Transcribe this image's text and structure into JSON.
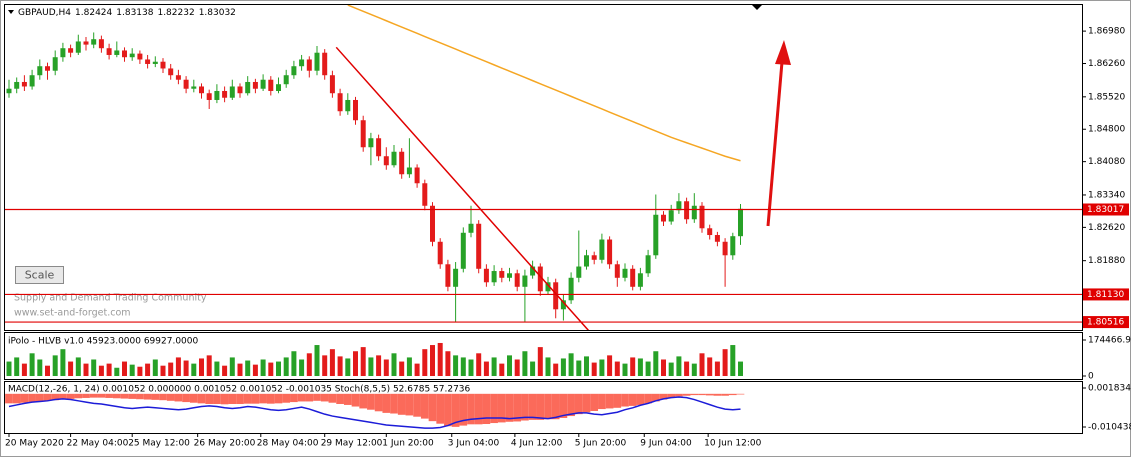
{
  "chart_data": {
    "type": "candlestick",
    "symbol": "GBPAUD,H4",
    "up_color": "#27a127",
    "down_color": "#e31b1b",
    "ylim": [
      1.8034,
      1.8756
    ],
    "yticks": [
      {
        "value": 1.8698,
        "label": "1.86980"
      },
      {
        "value": 1.8626,
        "label": "1.86260"
      },
      {
        "value": 1.8552,
        "label": "1.85520"
      },
      {
        "value": 1.848,
        "label": "1.84800"
      },
      {
        "value": 1.8408,
        "label": "1.84080"
      },
      {
        "value": 1.8334,
        "label": "1.83340"
      },
      {
        "value": 1.8262,
        "label": "1.82620"
      },
      {
        "value": 1.8188,
        "label": "1.81880"
      }
    ],
    "xticks": [
      {
        "value": 0,
        "label": "20 May 2020"
      },
      {
        "value": 8,
        "label": "22 May 04:00"
      },
      {
        "value": 16,
        "label": "25 May 12:00"
      },
      {
        "value": 24.5,
        "label": "26 May 20:00"
      },
      {
        "value": 32.7,
        "label": "28 May 04:00"
      },
      {
        "value": 41,
        "label": "29 May 12:00"
      },
      {
        "value": 49,
        "label": "1 Jun 20:00"
      },
      {
        "value": 57.5,
        "label": "3 Jun 04:00"
      },
      {
        "value": 65.7,
        "label": "4 Jun 12:00"
      },
      {
        "value": 74,
        "label": "5 Jun 20:00"
      },
      {
        "value": 82.5,
        "label": "9 Jun 04:00"
      },
      {
        "value": 90.8,
        "label": "10 Jun 12:00"
      }
    ],
    "candles": [
      [
        1.856,
        1.859,
        1.855,
        1.857
      ],
      [
        1.857,
        1.8595,
        1.856,
        1.8585
      ],
      [
        1.8585,
        1.86,
        1.8565,
        1.8575
      ],
      [
        1.8575,
        1.8612,
        1.8568,
        1.86
      ],
      [
        1.86,
        1.8635,
        1.859,
        1.862
      ],
      [
        1.862,
        1.8628,
        1.859,
        1.861
      ],
      [
        1.861,
        1.8655,
        1.86,
        1.864
      ],
      [
        1.864,
        1.8672,
        1.863,
        1.866
      ],
      [
        1.866,
        1.8668,
        1.864,
        1.865
      ],
      [
        1.865,
        1.869,
        1.8645,
        1.8675
      ],
      [
        1.8675,
        1.8685,
        1.8655,
        1.8668
      ],
      [
        1.8668,
        1.8695,
        1.866,
        1.868
      ],
      [
        1.868,
        1.8688,
        1.865,
        1.866
      ],
      [
        1.866,
        1.867,
        1.8635,
        1.8645
      ],
      [
        1.8645,
        1.8675,
        1.864,
        1.8655
      ],
      [
        1.8655,
        1.8662,
        1.863,
        1.864
      ],
      [
        1.864,
        1.866,
        1.8632,
        1.8648
      ],
      [
        1.8648,
        1.8655,
        1.8625,
        1.8635
      ],
      [
        1.8635,
        1.8645,
        1.8615,
        1.8625
      ],
      [
        1.8625,
        1.8642,
        1.8618,
        1.863
      ],
      [
        1.863,
        1.8638,
        1.8605,
        1.8615
      ],
      [
        1.8615,
        1.8625,
        1.859,
        1.86
      ],
      [
        1.86,
        1.8612,
        1.858,
        1.859
      ],
      [
        1.859,
        1.8598,
        1.856,
        1.857
      ],
      [
        1.857,
        1.859,
        1.8562,
        1.8575
      ],
      [
        1.8575,
        1.8582,
        1.8548,
        1.856
      ],
      [
        1.856,
        1.8568,
        1.8525,
        1.8545
      ],
      [
        1.8545,
        1.858,
        1.8538,
        1.8565
      ],
      [
        1.8565,
        1.8575,
        1.854,
        1.855
      ],
      [
        1.855,
        1.859,
        1.8545,
        1.8575
      ],
      [
        1.8575,
        1.8582,
        1.855,
        1.856
      ],
      [
        1.856,
        1.8598,
        1.8555,
        1.8585
      ],
      [
        1.8585,
        1.8592,
        1.856,
        1.857
      ],
      [
        1.857,
        1.8602,
        1.8565,
        1.859
      ],
      [
        1.859,
        1.8598,
        1.8555,
        1.8565
      ],
      [
        1.8565,
        1.8595,
        1.856,
        1.858
      ],
      [
        1.858,
        1.8612,
        1.8572,
        1.86
      ],
      [
        1.86,
        1.8632,
        1.8592,
        1.862
      ],
      [
        1.862,
        1.8645,
        1.861,
        1.8635
      ],
      [
        1.8635,
        1.8642,
        1.8595,
        1.861
      ],
      [
        1.861,
        1.8665,
        1.86,
        1.865
      ],
      [
        1.865,
        1.8658,
        1.859,
        1.86
      ],
      [
        1.86,
        1.861,
        1.855,
        1.856
      ],
      [
        1.856,
        1.857,
        1.851,
        1.852
      ],
      [
        1.852,
        1.856,
        1.8512,
        1.8545
      ],
      [
        1.8545,
        1.8552,
        1.849,
        1.85
      ],
      [
        1.85,
        1.851,
        1.843,
        1.844
      ],
      [
        1.844,
        1.8472,
        1.84,
        1.846
      ],
      [
        1.846,
        1.8468,
        1.841,
        1.842
      ],
      [
        1.842,
        1.844,
        1.839,
        1.84
      ],
      [
        1.84,
        1.8445,
        1.8395,
        1.843
      ],
      [
        1.843,
        1.8438,
        1.837,
        1.838
      ],
      [
        1.838,
        1.846,
        1.8372,
        1.8395
      ],
      [
        1.8395,
        1.8402,
        1.835,
        1.836
      ],
      [
        1.836,
        1.8368,
        1.83,
        1.831
      ],
      [
        1.831,
        1.8318,
        1.822,
        1.823
      ],
      [
        1.823,
        1.8238,
        1.817,
        1.818
      ],
      [
        1.818,
        1.819,
        1.812,
        1.813
      ],
      [
        1.813,
        1.8185,
        1.8052,
        1.817
      ],
      [
        1.817,
        1.8262,
        1.8162,
        1.825
      ],
      [
        1.825,
        1.831,
        1.824,
        1.827
      ],
      [
        1.827,
        1.8278,
        1.816,
        1.817
      ],
      [
        1.817,
        1.818,
        1.813,
        1.814
      ],
      [
        1.814,
        1.8178,
        1.8132,
        1.8165
      ],
      [
        1.8165,
        1.8172,
        1.814,
        1.815
      ],
      [
        1.815,
        1.8172,
        1.8142,
        1.816
      ],
      [
        1.816,
        1.8168,
        1.812,
        1.813
      ],
      [
        1.813,
        1.8168,
        1.8052,
        1.8155
      ],
      [
        1.8155,
        1.8188,
        1.8148,
        1.8175
      ],
      [
        1.8175,
        1.8182,
        1.811,
        1.812
      ],
      [
        1.812,
        1.8152,
        1.8112,
        1.814
      ],
      [
        1.814,
        1.8148,
        1.806,
        1.808
      ],
      [
        1.808,
        1.8112,
        1.8055,
        1.81
      ],
      [
        1.81,
        1.8162,
        1.8092,
        1.815
      ],
      [
        1.815,
        1.8255,
        1.814,
        1.8175
      ],
      [
        1.8175,
        1.8212,
        1.8168,
        1.82
      ],
      [
        1.82,
        1.8208,
        1.818,
        1.819
      ],
      [
        1.819,
        1.8248,
        1.8182,
        1.8235
      ],
      [
        1.8235,
        1.8242,
        1.817,
        1.818
      ],
      [
        1.818,
        1.8188,
        1.813,
        1.815
      ],
      [
        1.815,
        1.8182,
        1.8142,
        1.817
      ],
      [
        1.817,
        1.8178,
        1.8122,
        1.813
      ],
      [
        1.813,
        1.8172,
        1.8122,
        1.816
      ],
      [
        1.816,
        1.8212,
        1.8152,
        1.82
      ],
      [
        1.82,
        1.8335,
        1.8192,
        1.829
      ],
      [
        1.829,
        1.8298,
        1.8265,
        1.8275
      ],
      [
        1.8275,
        1.8312,
        1.8268,
        1.83
      ],
      [
        1.83,
        1.8338,
        1.8292,
        1.832
      ],
      [
        1.832,
        1.8328,
        1.827,
        1.828
      ],
      [
        1.828,
        1.8338,
        1.8272,
        1.831
      ],
      [
        1.831,
        1.8318,
        1.825,
        1.826
      ],
      [
        1.826,
        1.8268,
        1.8235,
        1.8245
      ],
      [
        1.8245,
        1.8252,
        1.822,
        1.823
      ],
      [
        1.823,
        1.8238,
        1.813,
        1.82
      ],
      [
        1.82,
        1.825,
        1.819,
        1.82424
      ],
      [
        1.82424,
        1.83138,
        1.82232,
        1.83032
      ]
    ],
    "ma": {
      "color": "#f5a623",
      "values": [
        null,
        null,
        null,
        null,
        null,
        null,
        null,
        null,
        null,
        null,
        null,
        null,
        null,
        null,
        null,
        null,
        null,
        null,
        null,
        null,
        null,
        null,
        null,
        null,
        null,
        null,
        null,
        null,
        null,
        null,
        null,
        null,
        null,
        null,
        null,
        null,
        null,
        null,
        null,
        null,
        null,
        null,
        null,
        null,
        1.8756,
        1.8749,
        1.8742,
        1.8735,
        1.8728,
        1.8721,
        1.8714,
        1.8707,
        1.87,
        1.8693,
        1.8686,
        1.8679,
        1.8672,
        1.8665,
        1.8658,
        1.8651,
        1.8644,
        1.8637,
        1.863,
        1.8623,
        1.8616,
        1.8609,
        1.8602,
        1.8595,
        1.8588,
        1.8581,
        1.8574,
        1.8567,
        1.856,
        1.8553,
        1.8546,
        1.8539,
        1.8532,
        1.8525,
        1.8518,
        1.8511,
        1.8504,
        1.8497,
        1.849,
        1.8483,
        1.8476,
        1.8469,
        1.8462,
        1.8456,
        1.845,
        1.8444,
        1.8438,
        1.8432,
        1.8426,
        1.842,
        1.8415,
        1.841
      ]
    },
    "trendline": {
      "color": "#e00000",
      "x": [
        42.5,
        75
      ],
      "y": [
        1.8662,
        1.8038
      ]
    },
    "levels": {
      "color": "#e00000",
      "values": [
        1.83017,
        1.8113,
        1.80516
      ],
      "value_labels": [
        "1.83017",
        "1.81130",
        "1.80516"
      ]
    },
    "watermark": [
      "Supply and Demand Trading Community",
      "www.set-and-forget.com"
    ],
    "scale_button": "Scale",
    "volume": {
      "header": "iPolo - HLVB v1.0 45923.0000 69927.0000",
      "ylim": [
        0,
        174466.95
      ],
      "yticks": [
        174466.95,
        0
      ],
      "values": [
        70000,
        90000,
        60000,
        110000,
        80000,
        50000,
        100000,
        130000,
        70000,
        90000,
        60000,
        80000,
        50000,
        60000,
        40000,
        70000,
        55000,
        45000,
        60000,
        80000,
        50000,
        65000,
        90000,
        75000,
        60000,
        85000,
        100000,
        70000,
        50000,
        90000,
        60000,
        75000,
        55000,
        80000,
        65000,
        70000,
        90000,
        120000,
        80000,
        110000,
        150000,
        100000,
        130000,
        95000,
        85000,
        120000,
        140000,
        90000,
        100000,
        80000,
        110000,
        70000,
        90000,
        60000,
        130000,
        150000,
        160000,
        120000,
        100000,
        90000,
        80000,
        110000,
        70000,
        90000,
        60000,
        100000,
        80000,
        120000,
        70000,
        140000,
        90000,
        60000,
        85000,
        110000,
        75000,
        95000,
        65000,
        80000,
        100000,
        70000,
        60000,
        90000,
        85000,
        70000,
        120000,
        80000,
        65000,
        95000,
        70000,
        60000,
        110000,
        90000,
        70000,
        130000,
        150000,
        69927
      ]
    },
    "macd": {
      "header": "MACD(12,-26, 1, 24) 0.001052 0.000000 0.001052 0.001052 -0.001035 Stoch(8,5,5) 52.6785 57.2736",
      "color": "#fb6a5a",
      "line_color": "#1c1cd8",
      "ylim": [
        -0.01233,
        0.00372
      ],
      "yticks": [
        0.001834,
        -0.010438
      ],
      "values": [
        -0.003,
        -0.003,
        -0.0028,
        -0.0026,
        -0.0024,
        -0.0022,
        -0.002,
        -0.0018,
        -0.0016,
        -0.0014,
        -0.0013,
        -0.0012,
        -0.0012,
        -0.0013,
        -0.0014,
        -0.0015,
        -0.0016,
        -0.0017,
        -0.0018,
        -0.0019,
        -0.002,
        -0.0022,
        -0.0024,
        -0.0026,
        -0.0028,
        -0.003,
        -0.0032,
        -0.0032,
        -0.0033,
        -0.0032,
        -0.0032,
        -0.0031,
        -0.0031,
        -0.003,
        -0.0031,
        -0.003,
        -0.0028,
        -0.0026,
        -0.0024,
        -0.0024,
        -0.0022,
        -0.0024,
        -0.0028,
        -0.0032,
        -0.0035,
        -0.004,
        -0.0046,
        -0.005,
        -0.0055,
        -0.006,
        -0.0062,
        -0.0066,
        -0.0068,
        -0.0072,
        -0.0078,
        -0.0086,
        -0.0094,
        -0.0102,
        -0.0104,
        -0.01,
        -0.0096,
        -0.0096,
        -0.0095,
        -0.0092,
        -0.009,
        -0.0088,
        -0.0087,
        -0.0084,
        -0.0082,
        -0.0082,
        -0.008,
        -0.008,
        -0.0076,
        -0.007,
        -0.0064,
        -0.0058,
        -0.0054,
        -0.0048,
        -0.0046,
        -0.0044,
        -0.004,
        -0.0038,
        -0.0035,
        -0.003,
        -0.0024,
        -0.0018,
        -0.0012,
        -0.0008,
        -0.0006,
        -0.0004,
        -0.0004,
        -0.0005,
        -0.0006,
        -0.0006,
        -0.0004,
        -0.0002
      ],
      "line": [
        -0.004,
        -0.0035,
        -0.003,
        -0.0026,
        -0.0024,
        -0.0022,
        -0.0018,
        -0.0016,
        -0.0018,
        -0.0022,
        -0.0026,
        -0.003,
        -0.0032,
        -0.0036,
        -0.004,
        -0.0044,
        -0.0046,
        -0.0044,
        -0.0042,
        -0.0044,
        -0.0046,
        -0.0048,
        -0.005,
        -0.0048,
        -0.0044,
        -0.004,
        -0.0038,
        -0.004,
        -0.0044,
        -0.0046,
        -0.0044,
        -0.004,
        -0.0042,
        -0.0046,
        -0.005,
        -0.0052,
        -0.005,
        -0.0046,
        -0.0042,
        -0.0048,
        -0.0056,
        -0.0064,
        -0.007,
        -0.0074,
        -0.0078,
        -0.0082,
        -0.0086,
        -0.009,
        -0.0094,
        -0.0098,
        -0.01,
        -0.0102,
        -0.0104,
        -0.0106,
        -0.0108,
        -0.0108,
        -0.0106,
        -0.01,
        -0.009,
        -0.0084,
        -0.008,
        -0.0078,
        -0.0076,
        -0.0076,
        -0.0076,
        -0.0078,
        -0.0076,
        -0.0074,
        -0.0074,
        -0.0076,
        -0.0078,
        -0.0074,
        -0.0068,
        -0.0064,
        -0.006,
        -0.006,
        -0.0064,
        -0.0066,
        -0.0062,
        -0.0058,
        -0.005,
        -0.0044,
        -0.0036,
        -0.003,
        -0.0022,
        -0.0016,
        -0.0012,
        -0.001,
        -0.0012,
        -0.0018,
        -0.0026,
        -0.0034,
        -0.0042,
        -0.0048,
        -0.005,
        -0.0048
      ]
    }
  }
}
